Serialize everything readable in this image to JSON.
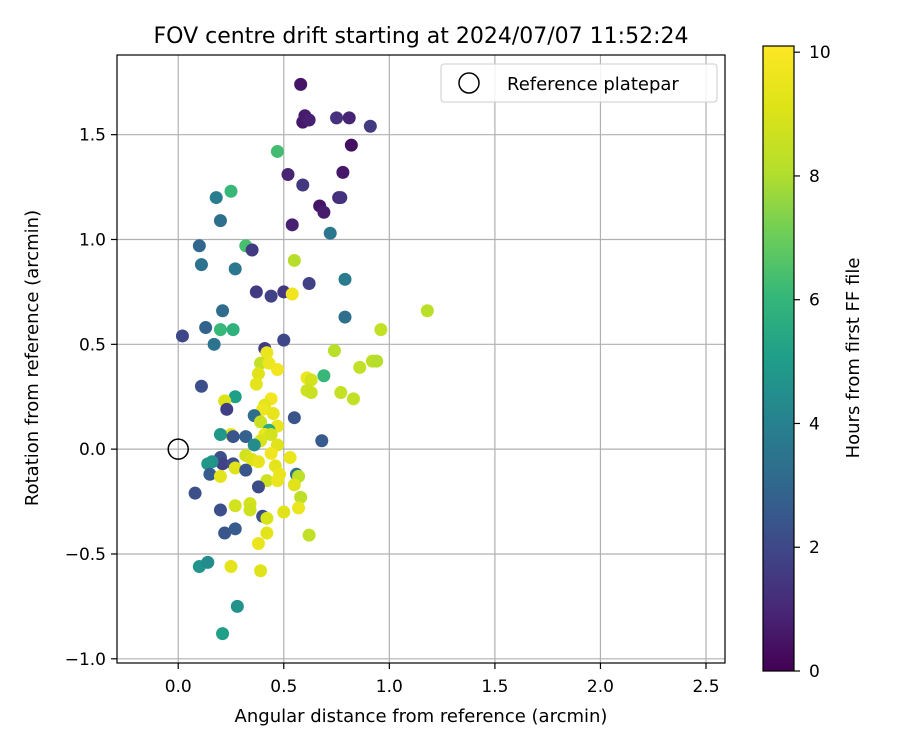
{
  "chart_data": {
    "type": "scatter",
    "title": "FOV centre drift starting at 2024/07/07 11:52:24",
    "xlabel": "Angular distance from reference (arcmin)",
    "ylabel": "Rotation from reference (arcmin)",
    "xlim": [
      -0.29,
      2.59
    ],
    "ylim": [
      -1.02,
      1.88
    ],
    "x_ticks": [
      0.0,
      0.5,
      1.0,
      1.5,
      2.0,
      2.5
    ],
    "x_tick_labels": [
      "0.0",
      "0.5",
      "1.0",
      "1.5",
      "2.0",
      "2.5"
    ],
    "y_ticks": [
      -1.0,
      -0.5,
      0.0,
      0.5,
      1.0,
      1.5
    ],
    "y_tick_labels": [
      "−1.0",
      "−0.5",
      "0.0",
      "0.5",
      "1.0",
      "1.5"
    ],
    "grid": true,
    "legend": {
      "placement": "top-right",
      "entries": [
        "Reference platepar"
      ]
    },
    "reference_point": {
      "x": 0.0,
      "y": 0.0
    },
    "colorbar": {
      "label": "Hours from first FF file",
      "range": [
        0,
        10.1
      ],
      "ticks": [
        0,
        2,
        4,
        6,
        8,
        10
      ],
      "tick_labels": [
        "0",
        "2",
        "4",
        "6",
        "8",
        "10"
      ],
      "colormap": "viridis"
    },
    "points": [
      {
        "x": 0.58,
        "y": 1.74,
        "c": 0.5
      },
      {
        "x": 0.59,
        "y": 1.56,
        "c": 0.6
      },
      {
        "x": 0.6,
        "y": 1.59,
        "c": 0.7
      },
      {
        "x": 0.62,
        "y": 1.57,
        "c": 0.8
      },
      {
        "x": 0.81,
        "y": 1.58,
        "c": 0.9
      },
      {
        "x": 0.75,
        "y": 1.58,
        "c": 1.3
      },
      {
        "x": 0.91,
        "y": 1.54,
        "c": 1.6
      },
      {
        "x": 0.82,
        "y": 1.45,
        "c": 0.4
      },
      {
        "x": 0.78,
        "y": 1.32,
        "c": 0.6
      },
      {
        "x": 0.52,
        "y": 1.31,
        "c": 0.9
      },
      {
        "x": 0.59,
        "y": 1.26,
        "c": 1.5
      },
      {
        "x": 0.76,
        "y": 1.2,
        "c": 1.1
      },
      {
        "x": 0.77,
        "y": 1.2,
        "c": 1.3
      },
      {
        "x": 0.67,
        "y": 1.16,
        "c": 0.5
      },
      {
        "x": 0.69,
        "y": 1.13,
        "c": 0.7
      },
      {
        "x": 0.54,
        "y": 1.07,
        "c": 0.8
      },
      {
        "x": 0.72,
        "y": 1.03,
        "c": 3.6
      },
      {
        "x": 0.47,
        "y": 1.42,
        "c": 6.3
      },
      {
        "x": 0.25,
        "y": 1.23,
        "c": 6.1
      },
      {
        "x": 0.18,
        "y": 1.2,
        "c": 3.9
      },
      {
        "x": 0.2,
        "y": 1.09,
        "c": 3.3
      },
      {
        "x": 0.1,
        "y": 0.97,
        "c": 3.0
      },
      {
        "x": 0.32,
        "y": 0.97,
        "c": 6.4
      },
      {
        "x": 0.35,
        "y": 0.95,
        "c": 1.6
      },
      {
        "x": 0.11,
        "y": 0.88,
        "c": 3.4
      },
      {
        "x": 0.27,
        "y": 0.86,
        "c": 3.6
      },
      {
        "x": 0.55,
        "y": 0.9,
        "c": 8.1
      },
      {
        "x": 0.62,
        "y": 0.79,
        "c": 1.8
      },
      {
        "x": 0.79,
        "y": 0.81,
        "c": 3.8
      },
      {
        "x": 0.37,
        "y": 0.75,
        "c": 1.6
      },
      {
        "x": 0.44,
        "y": 0.73,
        "c": 1.8
      },
      {
        "x": 0.5,
        "y": 0.75,
        "c": 1.5
      },
      {
        "x": 0.54,
        "y": 0.74,
        "c": 9.7
      },
      {
        "x": 0.21,
        "y": 0.66,
        "c": 3.2
      },
      {
        "x": 0.79,
        "y": 0.63,
        "c": 3.3
      },
      {
        "x": 1.18,
        "y": 0.66,
        "c": 8.2
      },
      {
        "x": 0.13,
        "y": 0.58,
        "c": 2.9
      },
      {
        "x": 0.2,
        "y": 0.57,
        "c": 6.1
      },
      {
        "x": 0.26,
        "y": 0.57,
        "c": 5.8
      },
      {
        "x": 0.02,
        "y": 0.54,
        "c": 2.0
      },
      {
        "x": 0.17,
        "y": 0.5,
        "c": 3.5
      },
      {
        "x": 0.5,
        "y": 0.52,
        "c": 2.0
      },
      {
        "x": 0.41,
        "y": 0.48,
        "c": 1.6
      },
      {
        "x": 0.42,
        "y": 0.46,
        "c": 9.5
      },
      {
        "x": 0.74,
        "y": 0.47,
        "c": 8.2
      },
      {
        "x": 0.96,
        "y": 0.57,
        "c": 8.4
      },
      {
        "x": 0.92,
        "y": 0.42,
        "c": 8.3
      },
      {
        "x": 0.94,
        "y": 0.42,
        "c": 8.1
      },
      {
        "x": 0.39,
        "y": 0.41,
        "c": 8.4
      },
      {
        "x": 0.43,
        "y": 0.41,
        "c": 9.6
      },
      {
        "x": 0.47,
        "y": 0.38,
        "c": 9.8
      },
      {
        "x": 0.86,
        "y": 0.39,
        "c": 8.4
      },
      {
        "x": 0.38,
        "y": 0.36,
        "c": 9.2
      },
      {
        "x": 0.61,
        "y": 0.34,
        "c": 9.6
      },
      {
        "x": 0.63,
        "y": 0.33,
        "c": 8.8
      },
      {
        "x": 0.69,
        "y": 0.35,
        "c": 6.1
      },
      {
        "x": 0.37,
        "y": 0.31,
        "c": 9.3
      },
      {
        "x": 0.11,
        "y": 0.3,
        "c": 2.2
      },
      {
        "x": 0.61,
        "y": 0.28,
        "c": 8.7
      },
      {
        "x": 0.63,
        "y": 0.27,
        "c": 8.6
      },
      {
        "x": 0.77,
        "y": 0.27,
        "c": 8.5
      },
      {
        "x": 0.83,
        "y": 0.24,
        "c": 8.4
      },
      {
        "x": 0.27,
        "y": 0.25,
        "c": 5.1
      },
      {
        "x": 0.22,
        "y": 0.23,
        "c": 9.1
      },
      {
        "x": 0.44,
        "y": 0.24,
        "c": 9.8
      },
      {
        "x": 0.41,
        "y": 0.21,
        "c": 9.3
      },
      {
        "x": 0.4,
        "y": 0.19,
        "c": 9.6
      },
      {
        "x": 0.23,
        "y": 0.19,
        "c": 1.7
      },
      {
        "x": 0.45,
        "y": 0.17,
        "c": 9.4
      },
      {
        "x": 0.55,
        "y": 0.15,
        "c": 2.4
      },
      {
        "x": 0.36,
        "y": 0.16,
        "c": 3.3
      },
      {
        "x": 0.39,
        "y": 0.13,
        "c": 8.6
      },
      {
        "x": 0.47,
        "y": 0.11,
        "c": 9.5
      },
      {
        "x": 0.43,
        "y": 0.09,
        "c": 5.6
      },
      {
        "x": 0.25,
        "y": 0.07,
        "c": 9.3
      },
      {
        "x": 0.2,
        "y": 0.07,
        "c": 4.8
      },
      {
        "x": 0.26,
        "y": 0.06,
        "c": 2.4
      },
      {
        "x": 0.32,
        "y": 0.06,
        "c": 2.8
      },
      {
        "x": 0.41,
        "y": 0.07,
        "c": 9.5
      },
      {
        "x": 0.44,
        "y": 0.07,
        "c": 8.8
      },
      {
        "x": 0.68,
        "y": 0.04,
        "c": 2.6
      },
      {
        "x": 0.39,
        "y": 0.04,
        "c": 9.0
      },
      {
        "x": 0.36,
        "y": 0.02,
        "c": 4.4
      },
      {
        "x": 0.47,
        "y": 0.02,
        "c": 9.2
      },
      {
        "x": 0.44,
        "y": -0.02,
        "c": 9.7
      },
      {
        "x": 0.32,
        "y": -0.03,
        "c": 8.8
      },
      {
        "x": 0.35,
        "y": -0.05,
        "c": 9.1
      },
      {
        "x": 0.53,
        "y": -0.04,
        "c": 9.5
      },
      {
        "x": 0.2,
        "y": -0.04,
        "c": 2.2
      },
      {
        "x": 0.21,
        "y": -0.07,
        "c": 1.8
      },
      {
        "x": 0.38,
        "y": -0.06,
        "c": 9.4
      },
      {
        "x": 0.16,
        "y": -0.06,
        "c": 4.6
      },
      {
        "x": 0.14,
        "y": -0.07,
        "c": 4.8
      },
      {
        "x": 0.26,
        "y": -0.07,
        "c": 2.2
      },
      {
        "x": 0.46,
        "y": -0.08,
        "c": 9.3
      },
      {
        "x": 0.27,
        "y": -0.09,
        "c": 9.2
      },
      {
        "x": 0.32,
        "y": -0.1,
        "c": 2.4
      },
      {
        "x": 0.56,
        "y": -0.12,
        "c": 3.2
      },
      {
        "x": 0.57,
        "y": -0.13,
        "c": 8.3
      },
      {
        "x": 0.48,
        "y": -0.12,
        "c": 9.5
      },
      {
        "x": 0.15,
        "y": -0.12,
        "c": 2.6
      },
      {
        "x": 0.2,
        "y": -0.13,
        "c": 9.3
      },
      {
        "x": 0.42,
        "y": -0.15,
        "c": 8.7
      },
      {
        "x": 0.47,
        "y": -0.15,
        "c": 9.5
      },
      {
        "x": 0.38,
        "y": -0.18,
        "c": 2.1
      },
      {
        "x": 0.55,
        "y": -0.17,
        "c": 9.2
      },
      {
        "x": 0.58,
        "y": -0.23,
        "c": 8.3
      },
      {
        "x": 0.08,
        "y": -0.21,
        "c": 2.2
      },
      {
        "x": 0.27,
        "y": -0.27,
        "c": 8.8
      },
      {
        "x": 0.34,
        "y": -0.26,
        "c": 8.8
      },
      {
        "x": 0.34,
        "y": -0.29,
        "c": 8.7
      },
      {
        "x": 0.57,
        "y": -0.28,
        "c": 9.5
      },
      {
        "x": 0.2,
        "y": -0.29,
        "c": 2.2
      },
      {
        "x": 0.5,
        "y": -0.3,
        "c": 9.2
      },
      {
        "x": 0.4,
        "y": -0.32,
        "c": 2.2
      },
      {
        "x": 0.42,
        "y": -0.33,
        "c": 9.0
      },
      {
        "x": 0.22,
        "y": -0.4,
        "c": 2.4
      },
      {
        "x": 0.27,
        "y": -0.38,
        "c": 2.6
      },
      {
        "x": 0.42,
        "y": -0.4,
        "c": 9.3
      },
      {
        "x": 0.62,
        "y": -0.41,
        "c": 8.4
      },
      {
        "x": 0.38,
        "y": -0.45,
        "c": 9.5
      },
      {
        "x": 0.1,
        "y": -0.56,
        "c": 4.7
      },
      {
        "x": 0.14,
        "y": -0.54,
        "c": 4.4
      },
      {
        "x": 0.25,
        "y": -0.56,
        "c": 9.3
      },
      {
        "x": 0.39,
        "y": -0.58,
        "c": 9.2
      },
      {
        "x": 0.28,
        "y": -0.75,
        "c": 4.6
      },
      {
        "x": 0.21,
        "y": -0.88,
        "c": 5.1
      }
    ]
  }
}
